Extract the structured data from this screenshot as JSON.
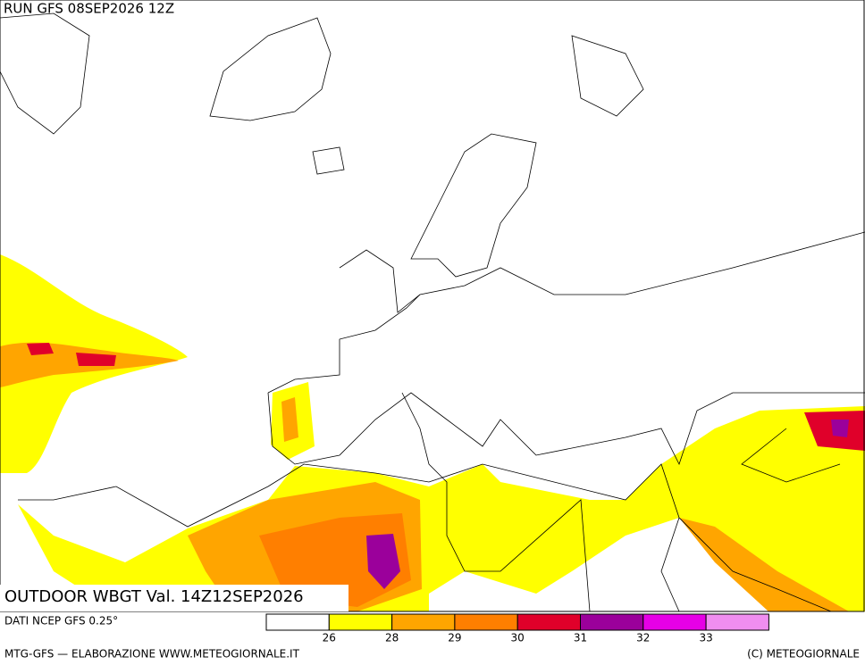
{
  "header": {
    "run": "RUN GFS 08SEP2026 12Z"
  },
  "map": {
    "title": "OUTDOOR WBGT Val. 14Z12SEP2026"
  },
  "legend": {
    "source": "DATI NCEP GFS 0.25°",
    "colors": [
      "#ffffff",
      "#ffff00",
      "#ffa500",
      "#ff7f00",
      "#e0002a",
      "#9b009b",
      "#e600e6",
      "#f08ef0"
    ],
    "ticks": [
      26,
      28,
      29,
      30,
      31,
      32,
      33
    ]
  },
  "footer": {
    "left": "MTG-GFS — ELABORAZIONE WWW.METEOGIORNALE.IT",
    "right": "(C) METEOGIORNALE"
  }
}
